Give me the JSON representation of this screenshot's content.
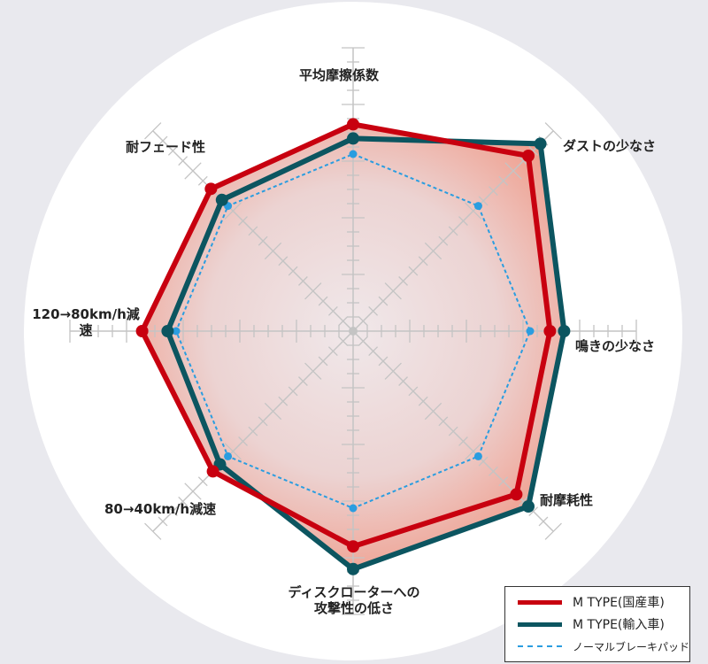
{
  "chart_data": {
    "type": "radar",
    "axes": [
      "平均摩擦係数",
      "ダストの少なさ",
      "鳴きの少なさ",
      "耐摩耗性",
      "ディスクローターへの攻撃性の低さ",
      "80→40km/h減速",
      "120→80km/h減速",
      "耐フェード性"
    ],
    "axis_labels": {
      "a0": "平均摩擦係数",
      "a1": "ダストの少なさ",
      "a2": "鳴きの少なさ",
      "a3": "耐摩耗性",
      "a4_l1": "ディスクローターへの",
      "a4_l2": "攻撃性の低さ",
      "a5": "80→40km/h減速",
      "a6_l1": "120→80km/h",
      "a6_l2": "減速",
      "a7": "耐フェード性"
    },
    "range": [
      0,
      20
    ],
    "grid": true,
    "legend_position": "bottom-right",
    "series": [
      {
        "name": "M TYPE(国産車)",
        "color": "#c8000f",
        "style": "solid",
        "values": [
          14.6,
          17.5,
          13.9,
          16.3,
          15.2,
          14.0,
          14.9,
          14.2
        ]
      },
      {
        "name": "M TYPE(輸入車)",
        "color": "#0c5560",
        "style": "solid",
        "values": [
          13.6,
          18.7,
          14.9,
          17.5,
          16.8,
          13.3,
          13.1,
          13.1
        ]
      },
      {
        "name": "ノーマルブレーキパッド",
        "color": "#2a9de0",
        "style": "dashed",
        "values": [
          12.5,
          12.5,
          12.5,
          12.5,
          12.5,
          12.5,
          12.5,
          12.5
        ]
      }
    ]
  }
}
